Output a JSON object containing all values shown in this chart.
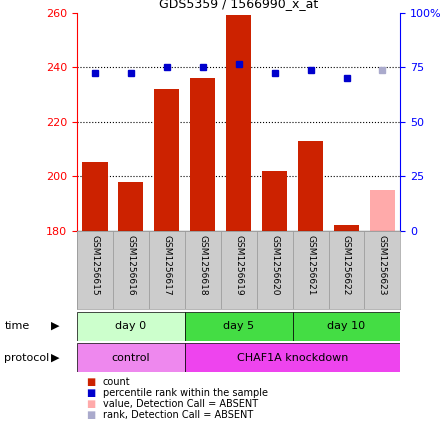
{
  "title": "GDS5359 / 1566990_x_at",
  "samples": [
    "GSM1256615",
    "GSM1256616",
    "GSM1256617",
    "GSM1256618",
    "GSM1256619",
    "GSM1256620",
    "GSM1256621",
    "GSM1256622",
    "GSM1256623"
  ],
  "bar_values": [
    205,
    198,
    232,
    236,
    259,
    202,
    213,
    182,
    195
  ],
  "bar_colors": [
    "#cc2200",
    "#cc2200",
    "#cc2200",
    "#cc2200",
    "#cc2200",
    "#cc2200",
    "#cc2200",
    "#cc2200",
    "#ffaaaa"
  ],
  "rank_dots": [
    238,
    238,
    240,
    240,
    241,
    238,
    239,
    236,
    239
  ],
  "rank_colors": [
    "#0000cc",
    "#0000cc",
    "#0000cc",
    "#0000cc",
    "#0000cc",
    "#0000cc",
    "#0000cc",
    "#0000cc",
    "#aaaacc"
  ],
  "ylim_left": [
    180,
    260
  ],
  "ylim_right": [
    0,
    100
  ],
  "yticks_left": [
    180,
    200,
    220,
    240,
    260
  ],
  "yticks_right": [
    0,
    25,
    50,
    75,
    100
  ],
  "ytick_labels_right": [
    "0",
    "25",
    "50",
    "75",
    "100%"
  ],
  "time_groups": [
    {
      "label": "day 0",
      "start": 0,
      "end": 3,
      "color": "#ccffcc"
    },
    {
      "label": "day 5",
      "start": 3,
      "end": 6,
      "color": "#44dd44"
    },
    {
      "label": "day 10",
      "start": 6,
      "end": 9,
      "color": "#44dd44"
    }
  ],
  "protocol_groups": [
    {
      "label": "control",
      "start": 0,
      "end": 3,
      "color": "#ee88ee"
    },
    {
      "label": "CHAF1A knockdown",
      "start": 3,
      "end": 9,
      "color": "#ee44ee"
    }
  ],
  "legend_items": [
    {
      "color": "#cc2200",
      "label": "count"
    },
    {
      "color": "#0000cc",
      "label": "percentile rank within the sample"
    },
    {
      "color": "#ffaaaa",
      "label": "value, Detection Call = ABSENT"
    },
    {
      "color": "#aaaacc",
      "label": "rank, Detection Call = ABSENT"
    }
  ],
  "bar_width": 0.7,
  "label_bg_color": "#cccccc",
  "label_border_color": "#999999"
}
